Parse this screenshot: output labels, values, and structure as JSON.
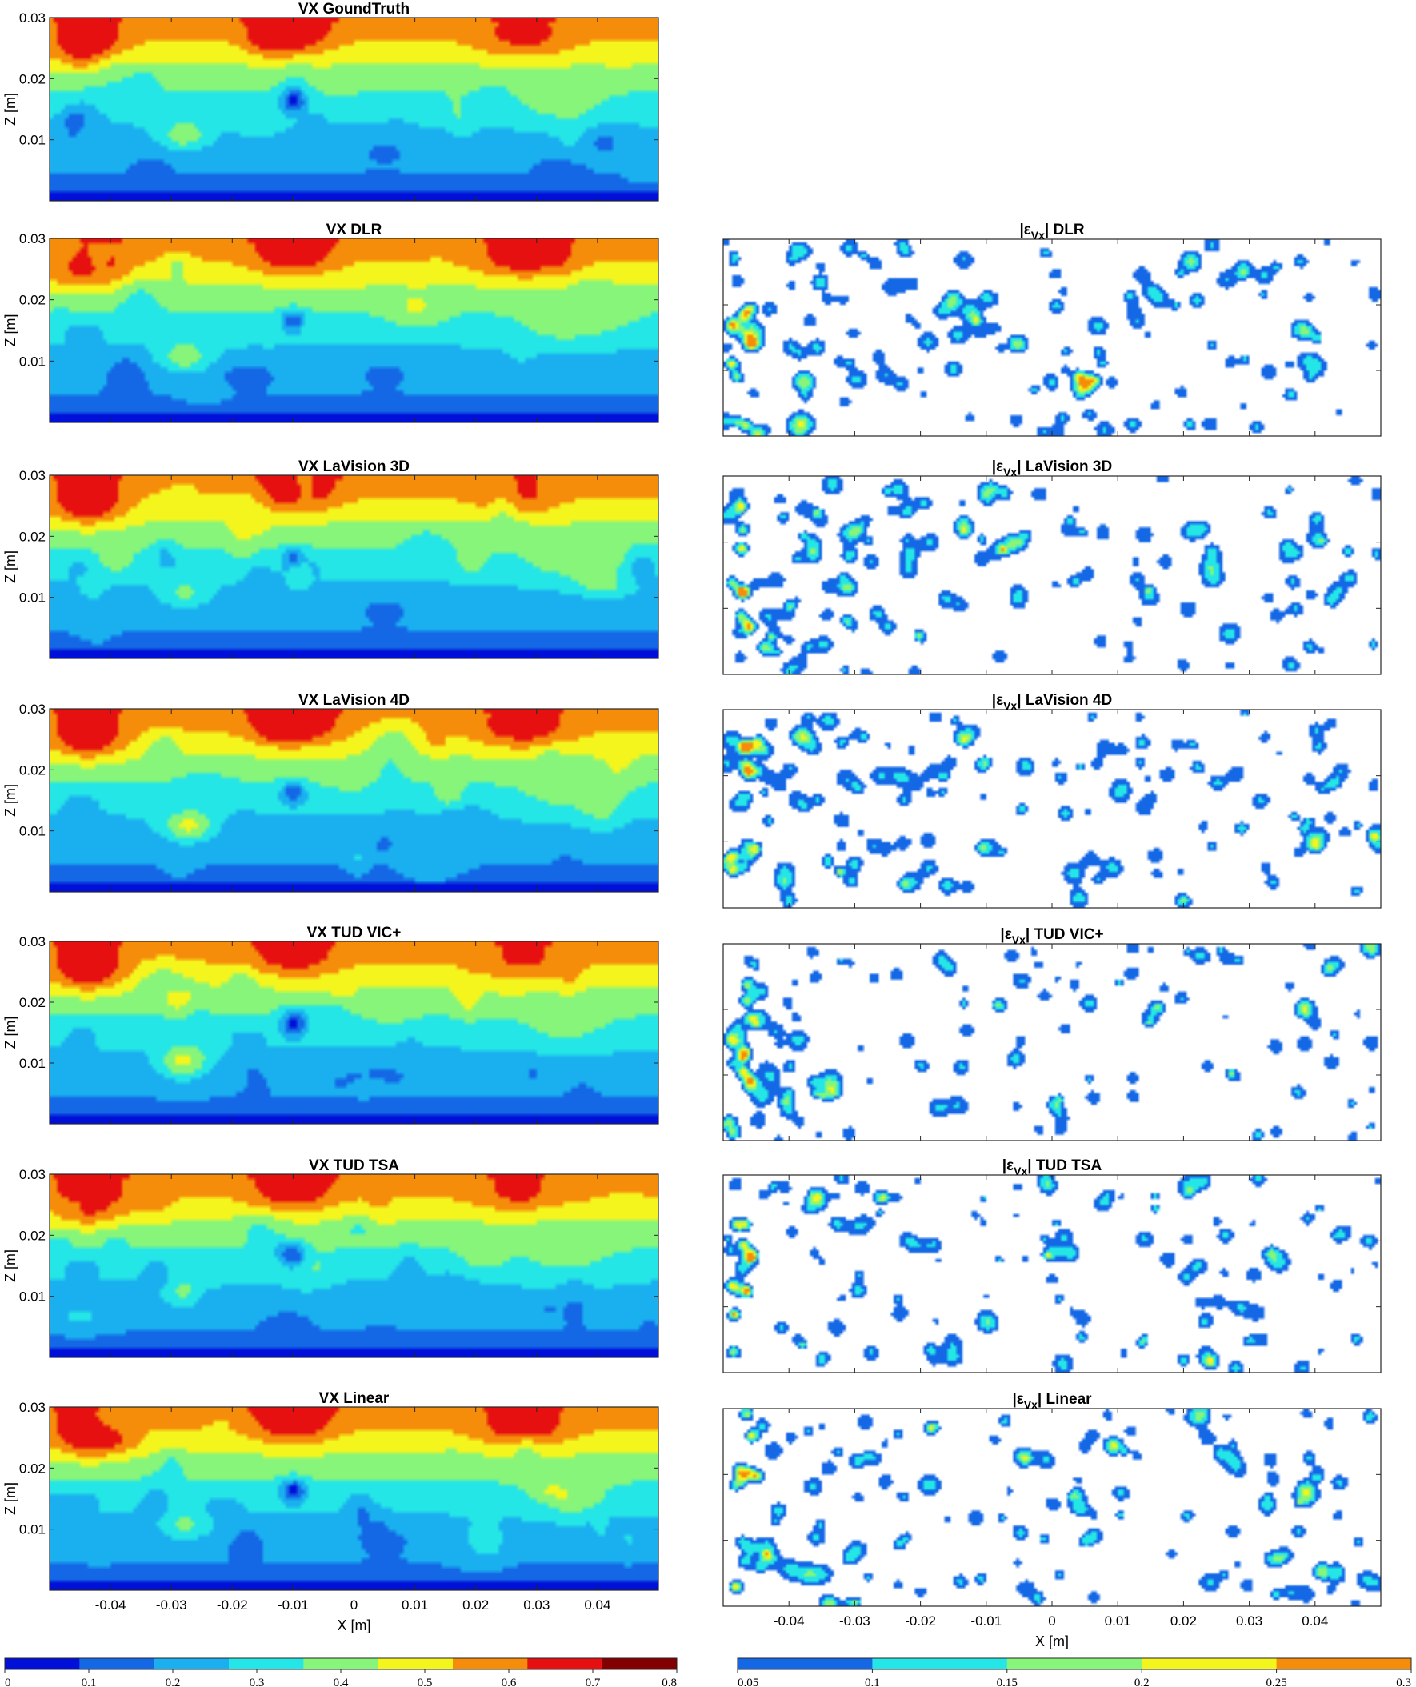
{
  "chart_data": {
    "type": "heatmap",
    "colorbars": [
      {
        "id": "velocity",
        "ticks": [
          "0",
          "0.1",
          "0.2",
          "0.3",
          "0.4",
          "0.5",
          "0.6",
          "0.7",
          "0.8"
        ],
        "range": [
          0,
          0.8
        ],
        "colors": [
          "#0010d8",
          "#1468e6",
          "#1ab0f0",
          "#25e6e6",
          "#87f57a",
          "#f5f51e",
          "#f58c0a",
          "#e61010",
          "#820000"
        ]
      },
      {
        "id": "error",
        "ticks": [
          "0.05",
          "0.1",
          "0.15",
          "0.2",
          "0.25",
          "0.3"
        ],
        "range": [
          0.05,
          0.3
        ],
        "colors": [
          "#1468e6",
          "#25e6e6",
          "#87f57a",
          "#f5f51e",
          "#f58c0a"
        ]
      }
    ],
    "axes": {
      "xlabel": "X [m]",
      "ylabel": "Z [m]",
      "xticks": [
        "-0.04",
        "-0.03",
        "-0.02",
        "-0.01",
        "0",
        "0.01",
        "0.02",
        "0.03",
        "0.04"
      ],
      "xtick_values": [
        -0.04,
        -0.03,
        -0.02,
        -0.01,
        0,
        0.01,
        0.02,
        0.03,
        0.04
      ],
      "xlim": [
        -0.05,
        0.05
      ],
      "yticks": [
        "0.01",
        "0.02",
        "0.03"
      ],
      "ytick_values": [
        0.01,
        0.02,
        0.03
      ],
      "ylim": [
        0,
        0.03
      ]
    },
    "velocity_panels": [
      {
        "title": "VX GoundTruth",
        "seed": 11
      },
      {
        "title": "VX DLR",
        "seed": 23
      },
      {
        "title": "VX LaVision 3D",
        "seed": 37
      },
      {
        "title": "VX LaVision 4D",
        "seed": 41
      },
      {
        "title": "VX TUD VIC+",
        "seed": 53
      },
      {
        "title": "VX TUD TSA",
        "seed": 67
      },
      {
        "title": "VX Linear",
        "seed": 79
      }
    ],
    "error_panels": [
      {
        "title_pre": "|ε",
        "title_sub": "Vx",
        "title_post": "| DLR",
        "seed": 101
      },
      {
        "title_pre": "|ε",
        "title_sub": "Vx",
        "title_post": "| LaVision 3D",
        "seed": 113
      },
      {
        "title_pre": "|ε",
        "title_sub": "Vx",
        "title_post": "| LaVision 4D",
        "seed": 127
      },
      {
        "title_pre": "|ε",
        "title_sub": "Vx",
        "title_post": "| TUD VIC+",
        "seed": 139
      },
      {
        "title_pre": "|ε",
        "title_sub": "Vx",
        "title_post": "| TUD TSA",
        "seed": 151
      },
      {
        "title_pre": "|ε",
        "title_sub": "Vx",
        "title_post": "| Linear",
        "seed": 163
      }
    ]
  }
}
